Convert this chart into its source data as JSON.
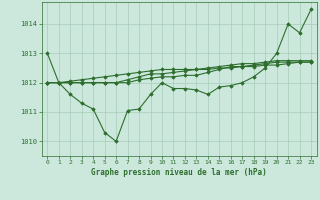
{
  "title": "Graphe pression niveau de la mer (hPa)",
  "background_color": "#cce8dc",
  "line_color": "#2d6e2d",
  "grid_color": "#a8ccb8",
  "xlim": [
    -0.5,
    23.5
  ],
  "ylim": [
    1009.5,
    1014.75
  ],
  "xticks": [
    0,
    1,
    2,
    3,
    4,
    5,
    6,
    7,
    8,
    9,
    10,
    11,
    12,
    13,
    14,
    15,
    16,
    17,
    18,
    19,
    20,
    21,
    22,
    23
  ],
  "yticks": [
    1010,
    1011,
    1012,
    1013,
    1014
  ],
  "series": [
    [
      1013.0,
      1012.0,
      1011.6,
      1011.3,
      1011.1,
      1010.3,
      1010.0,
      1011.05,
      1011.1,
      1011.6,
      1012.0,
      1011.8,
      1011.8,
      1011.75,
      1011.6,
      1011.85,
      1011.9,
      1012.0,
      1012.2,
      1012.5,
      1013.0,
      1014.0,
      1013.7,
      1014.5
    ],
    [
      1012.0,
      1012.0,
      1012.0,
      1012.0,
      1012.0,
      1012.0,
      1012.0,
      1012.1,
      1012.2,
      1012.3,
      1012.3,
      1012.35,
      1012.4,
      1012.45,
      1012.5,
      1012.55,
      1012.6,
      1012.65,
      1012.65,
      1012.7,
      1012.75,
      1012.75,
      1012.75,
      1012.75
    ],
    [
      1012.0,
      1012.0,
      1012.05,
      1012.1,
      1012.15,
      1012.2,
      1012.25,
      1012.3,
      1012.35,
      1012.4,
      1012.45,
      1012.45,
      1012.45,
      1012.45,
      1012.45,
      1012.5,
      1012.5,
      1012.55,
      1012.55,
      1012.6,
      1012.6,
      1012.65,
      1012.7,
      1012.7
    ],
    [
      1012.0,
      1012.0,
      1012.0,
      1012.0,
      1012.0,
      1012.0,
      1012.0,
      1012.0,
      1012.1,
      1012.15,
      1012.2,
      1012.2,
      1012.25,
      1012.25,
      1012.35,
      1012.45,
      1012.55,
      1012.55,
      1012.6,
      1012.65,
      1012.7,
      1012.7,
      1012.7,
      1012.7
    ]
  ]
}
